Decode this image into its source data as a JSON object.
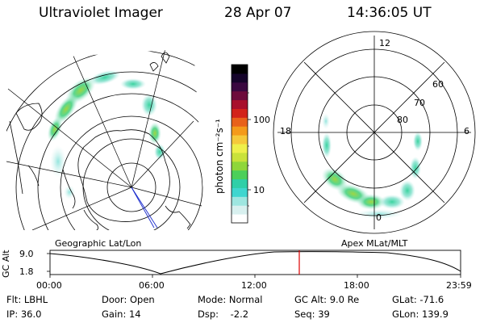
{
  "header": {
    "instrument": "Ultraviolet Imager",
    "date": "28 Apr 07",
    "time": "14:36:05 UT"
  },
  "colorbar": {
    "unit_label": "photon cm⁻²s⁻¹",
    "ticks": [
      "100",
      "10"
    ],
    "scale": "log",
    "colors": [
      "#ffffff",
      "#d8f0ef",
      "#9ee6e0",
      "#3fd6cf",
      "#2fcfa8",
      "#4ccf5a",
      "#8fd63a",
      "#c9e23a",
      "#eef04a",
      "#f5c93a",
      "#f49a1a",
      "#e8611a",
      "#d2231a",
      "#a8102c",
      "#6d0b3c",
      "#3a0840",
      "#15042a",
      "#000000"
    ]
  },
  "maps": {
    "left": {
      "caption": "Geographic Lat/Lon"
    },
    "right": {
      "caption": "Apex MLat/MLT",
      "mlt_labels": {
        "top": "12",
        "left": "18",
        "right": "6",
        "bottom": "0"
      },
      "mlat_labels": [
        "60",
        "70",
        "80"
      ]
    }
  },
  "timeline": {
    "axis_label": "GC Alt",
    "y_ticks": [
      "9.0",
      "1.8"
    ],
    "x_ticks": [
      "00:00",
      "06:00",
      "12:00",
      "18:00",
      "23:59"
    ],
    "current_time_marker": "14:36",
    "marker_color": "#dd0000"
  },
  "info": {
    "row1": [
      {
        "label": "Flt:",
        "value": "LBHL"
      },
      {
        "label": "Door:",
        "value": "Open"
      },
      {
        "label": "Mode:",
        "value": "Normal"
      },
      {
        "label": "GC Alt:",
        "value": "9.0 Re"
      },
      {
        "label": "GLat:",
        "value": "-71.6"
      }
    ],
    "row2": [
      {
        "label": "IP:",
        "value": "36.0"
      },
      {
        "label": "Gain:",
        "value": "14"
      },
      {
        "label": "Dsp:",
        "value": "-2.2"
      },
      {
        "label": "Seq:",
        "value": "39"
      },
      {
        "label": "GLon:",
        "value": "139.9"
      }
    ]
  }
}
